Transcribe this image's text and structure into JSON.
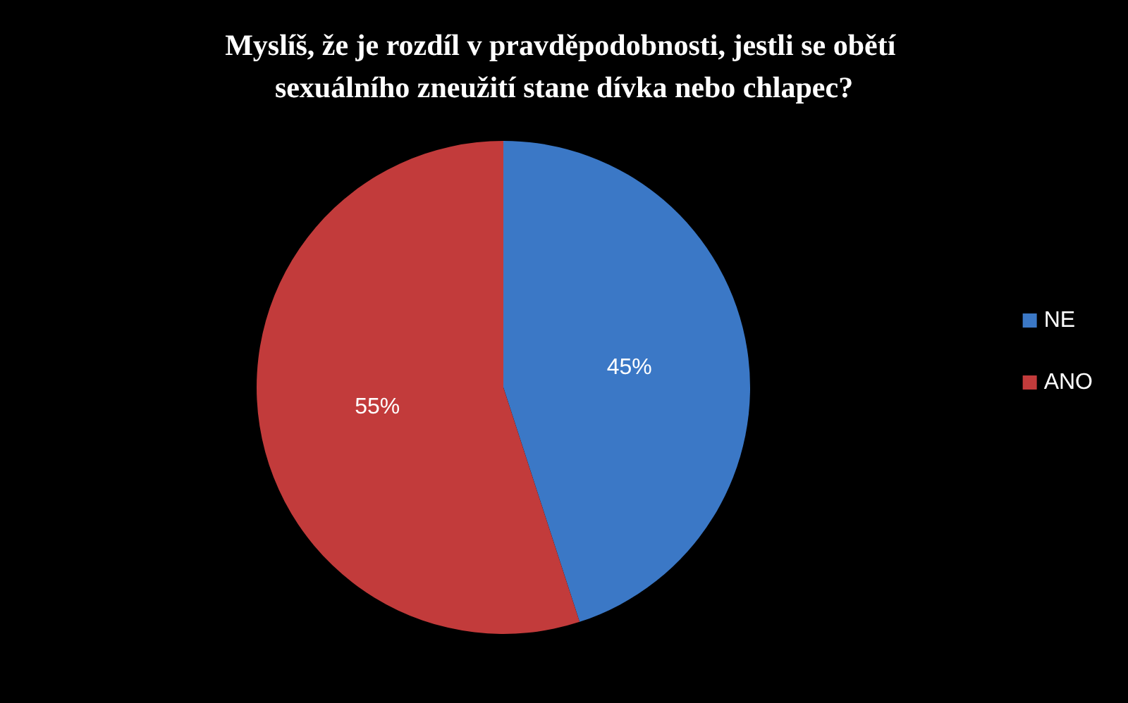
{
  "chart_data": {
    "type": "pie",
    "title": "Myslíš, že je rozdíl v pravděpodobnosti, jestli se obětí sexuálního zneužití stane dívka nebo chlapec?",
    "categories": [
      "NE",
      "ANO"
    ],
    "values": [
      45,
      55
    ],
    "colors": [
      "#3b78c6",
      "#c23b3b"
    ],
    "value_labels": [
      "45%",
      "55%"
    ],
    "legend": "right"
  }
}
